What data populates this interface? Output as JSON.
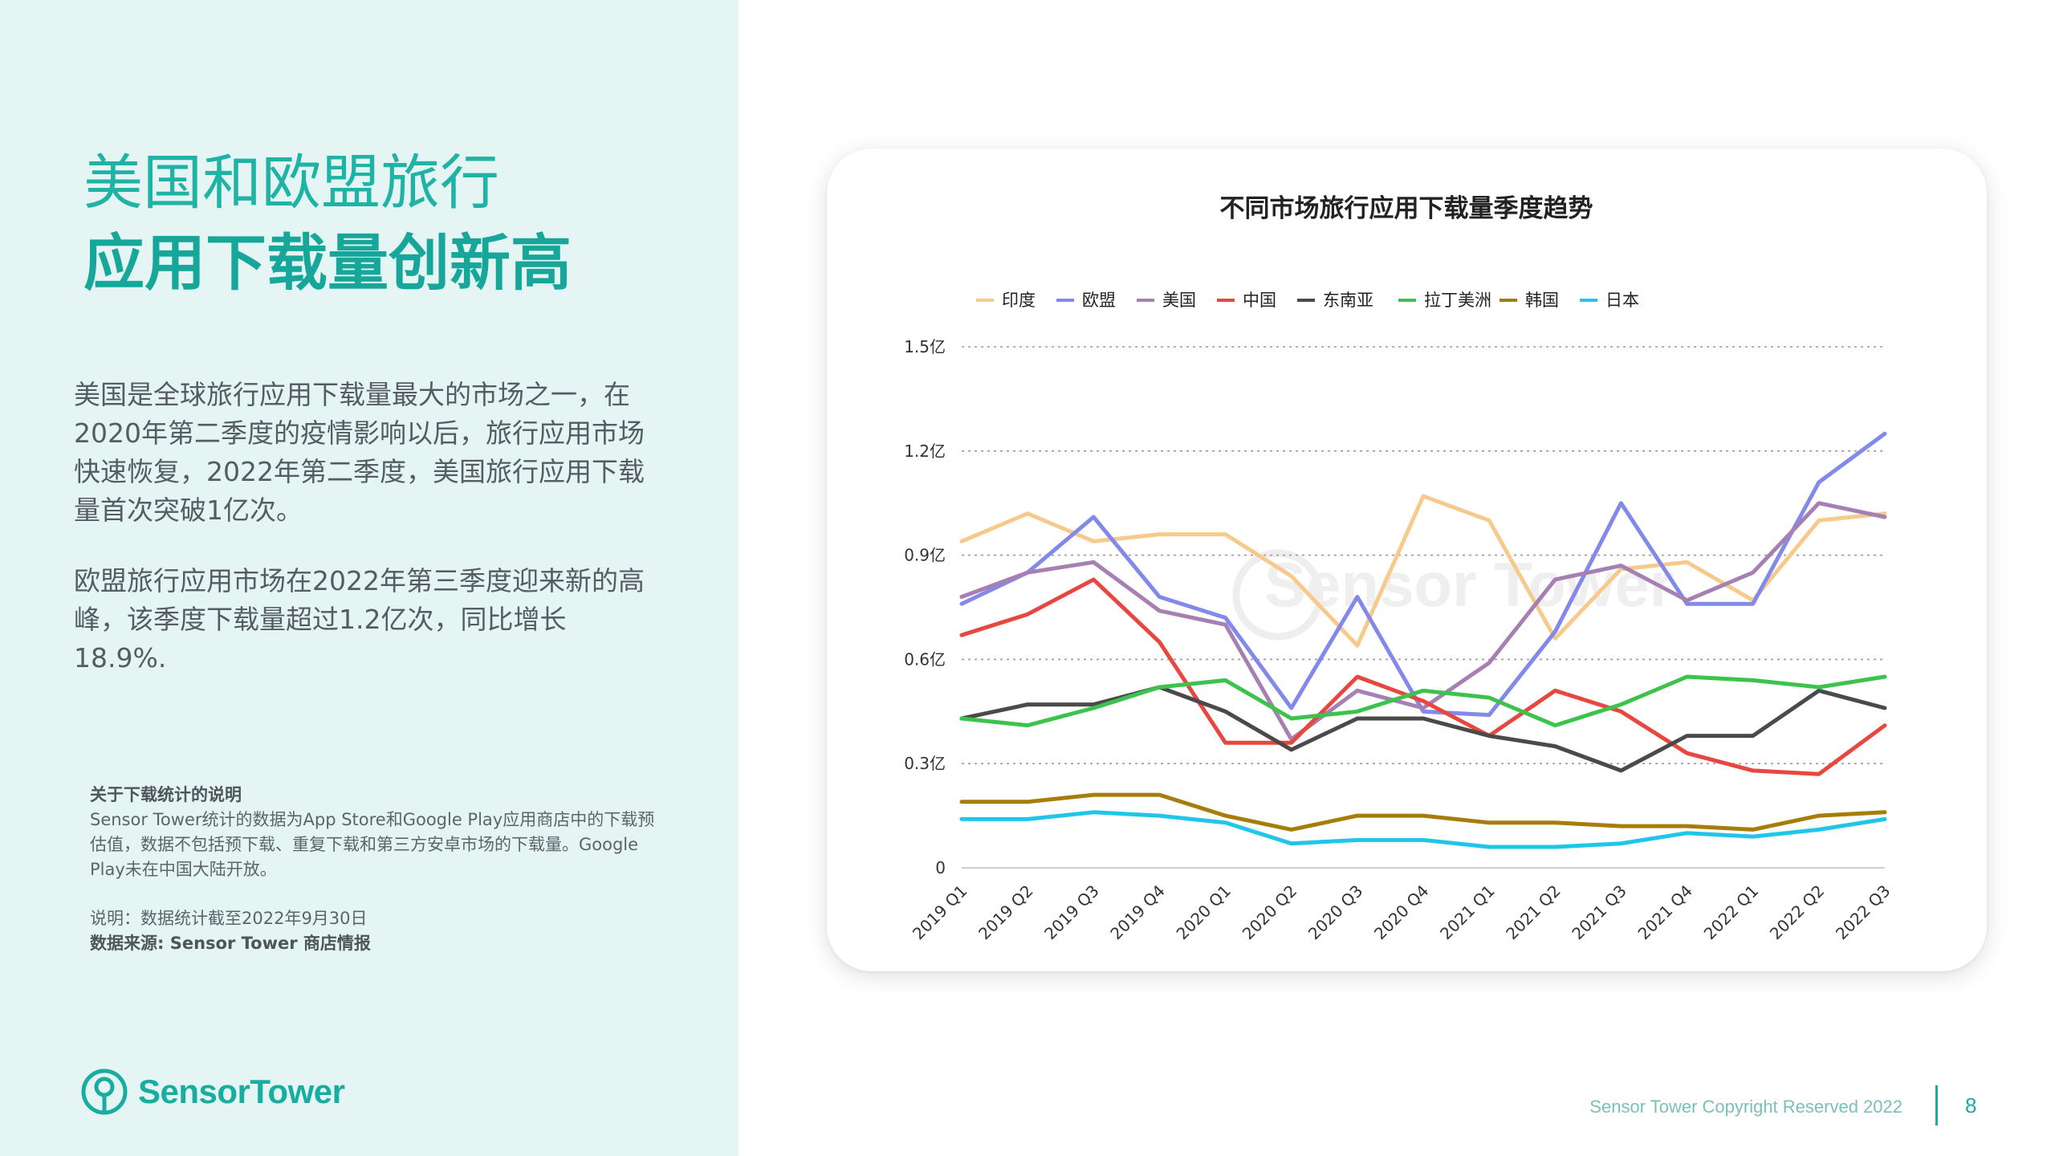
{
  "page": {
    "title_line1": "美国和欧盟旅行",
    "title_line2": "应用下载量创新高",
    "paragraph1": "美国是全球旅行应用下载量最大的市场之一，在2020年第二季度的疫情影响以后，旅行应用市场快速恢复，2022年第二季度，美国旅行应用下载量首次突破1亿次。",
    "paragraph2": "欧盟旅行应用市场在2022年第三季度迎来新的高峰，该季度下载量超过1.2亿次，同比增长18.9%.",
    "note_title": "关于下载统计的说明",
    "note_body": "Sensor Tower统计的数据为App Store和Google Play应用商店中的下载预估值，数据不包括预下载、重复下载和第三方安卓市场的下载量。Google Play未在中国大陆开放。",
    "note_date": "说明：数据统计截至2022年9月30日",
    "note_source": "数据来源: Sensor Tower 商店情报"
  },
  "brand": {
    "name": "SensorTower",
    "color": "#19ada0"
  },
  "footer": {
    "copyright": "Sensor Tower Copyright Reserved 2022",
    "page_number": "8"
  },
  "chart_data": {
    "type": "line",
    "title": "不同市场旅行应用下载量季度趋势",
    "watermark": "Sensor Tower",
    "legend_position": "top",
    "grid": "horizontal-dotted",
    "ylim": [
      0,
      1.5
    ],
    "y_ticks": [
      {
        "value": 0,
        "label": "0"
      },
      {
        "value": 0.3,
        "label": "0.3亿"
      },
      {
        "value": 0.6,
        "label": "0.6亿"
      },
      {
        "value": 0.9,
        "label": "0.9亿"
      },
      {
        "value": 1.2,
        "label": "1.2亿"
      },
      {
        "value": 1.5,
        "label": "1.5亿"
      }
    ],
    "categories": [
      "2019 Q1",
      "2019 Q2",
      "2019 Q3",
      "2019 Q4",
      "2020 Q1",
      "2020 Q2",
      "2020 Q3",
      "2020 Q4",
      "2021 Q1",
      "2021 Q2",
      "2021 Q3",
      "2021 Q4",
      "2022 Q1",
      "2022 Q2",
      "2022 Q3"
    ],
    "series": [
      {
        "name": "印度",
        "color": "#f7c98b",
        "values": [
          0.94,
          1.02,
          0.94,
          0.96,
          0.96,
          0.84,
          0.64,
          1.07,
          1.0,
          0.66,
          0.86,
          0.88,
          0.77,
          1.0,
          1.02
        ]
      },
      {
        "name": "欧盟",
        "color": "#8389ea",
        "values": [
          0.76,
          0.85,
          1.01,
          0.78,
          0.72,
          0.46,
          0.78,
          0.45,
          0.44,
          0.68,
          1.05,
          0.76,
          0.76,
          1.11,
          1.25
        ]
      },
      {
        "name": "美国",
        "color": "#a67fb3",
        "values": [
          0.78,
          0.85,
          0.88,
          0.74,
          0.7,
          0.37,
          0.51,
          0.46,
          0.59,
          0.83,
          0.87,
          0.77,
          0.85,
          1.05,
          1.01
        ]
      },
      {
        "name": "中国",
        "color": "#e8473f",
        "values": [
          0.67,
          0.73,
          0.83,
          0.65,
          0.36,
          0.36,
          0.55,
          0.48,
          0.38,
          0.51,
          0.45,
          0.33,
          0.28,
          0.27,
          0.41
        ]
      },
      {
        "name": "东南亚",
        "color": "#4a4a4a",
        "values": [
          0.43,
          0.47,
          0.47,
          0.52,
          0.45,
          0.34,
          0.43,
          0.43,
          0.38,
          0.35,
          0.28,
          0.38,
          0.38,
          0.51,
          0.46
        ]
      },
      {
        "name": "拉丁美洲",
        "color": "#3cc34b",
        "values": [
          0.43,
          0.41,
          0.46,
          0.52,
          0.54,
          0.43,
          0.45,
          0.51,
          0.49,
          0.41,
          0.47,
          0.55,
          0.54,
          0.52,
          0.55
        ]
      },
      {
        "name": "韩国",
        "color": "#a67c0b",
        "values": [
          0.19,
          0.19,
          0.21,
          0.21,
          0.15,
          0.11,
          0.15,
          0.15,
          0.13,
          0.13,
          0.12,
          0.12,
          0.11,
          0.15,
          0.16
        ]
      },
      {
        "name": "日本",
        "color": "#1fc6ea",
        "values": [
          0.14,
          0.14,
          0.16,
          0.15,
          0.13,
          0.07,
          0.08,
          0.08,
          0.06,
          0.06,
          0.07,
          0.1,
          0.09,
          0.11,
          0.14
        ]
      }
    ]
  }
}
